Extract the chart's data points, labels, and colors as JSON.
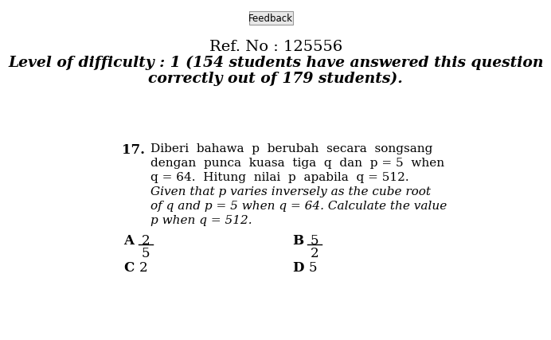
{
  "feedback_btn_text": "Feedback",
  "ref_no": "Ref. No : 125556",
  "difficulty_line1": "Level of difficulty : 1 (154 students have answered this question",
  "difficulty_line2": "correctly out of 179 students).",
  "q_number": "17.",
  "malay_line1": "Diberi  bahawa  p  berubah  secara  songsang",
  "malay_line2": "dengan  punca  kuasa  tiga  q  dan  p = 5  when",
  "malay_line3": "q = 64.  Hitung  nilai  p  apabila  q = 512.",
  "english_line1": "Given that p varies inversely as the cube root",
  "english_line2": "of q and p = 5 when q = 64. Calculate the value",
  "english_line3": "p when q = 512.",
  "opt_A_label": "A",
  "opt_A_num": "2",
  "opt_A_den": "5",
  "opt_B_label": "B",
  "opt_B_num": "5",
  "opt_B_den": "2",
  "opt_C_label": "C",
  "opt_C_val": "2",
  "opt_D_label": "D",
  "opt_D_val": "5",
  "bg_color": "#ffffff",
  "text_color": "#000000",
  "font_size_ref": 14,
  "font_size_difficulty": 13.5,
  "font_size_body": 11,
  "font_size_btn": 8.5
}
